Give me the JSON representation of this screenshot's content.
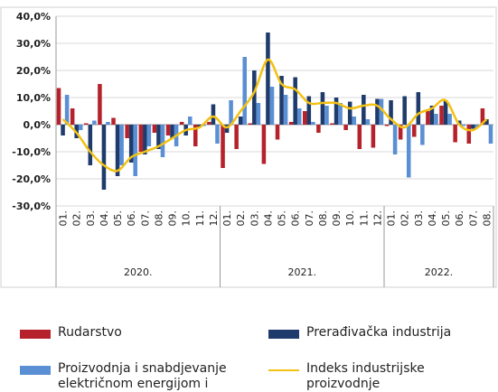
{
  "chart_data": {
    "type": "bar-line",
    "categories": [
      "01.",
      "02.",
      "03.",
      "04.",
      "05.",
      "06.",
      "07.",
      "08.",
      "09.",
      "10.",
      "11.",
      "12.",
      "01.",
      "02.",
      "03.",
      "04.",
      "05.",
      "06.",
      "07.",
      "08.",
      "09.",
      "10.",
      "11.",
      "12.",
      "01.",
      "02.",
      "03.",
      "04.",
      "05.",
      "06.",
      "07.",
      "08."
    ],
    "year_groups": [
      "2020.",
      "2021.",
      "2022."
    ],
    "ylim": [
      -30,
      40
    ],
    "yticks": [
      {
        "value": -30,
        "label": "-30,0%"
      },
      {
        "value": -20,
        "label": "-20,0%"
      },
      {
        "value": -10,
        "label": "-10,0%"
      },
      {
        "value": 0,
        "label": "0,0%"
      },
      {
        "value": 10,
        "label": "10,0%"
      },
      {
        "value": 20,
        "label": "20,0%"
      },
      {
        "value": 30,
        "label": "30,0%"
      },
      {
        "value": 40,
        "label": "40,0%"
      }
    ],
    "grid": true,
    "series": [
      {
        "name": "Rudarstvo",
        "kind": "bar",
        "color": "#b5222b",
        "values": [
          13.5,
          6,
          0.5,
          15,
          2.5,
          -5,
          -10,
          -3,
          -4,
          1,
          -8,
          1,
          -16,
          -9,
          0.5,
          -14.5,
          -5.5,
          1,
          5,
          -3,
          0.5,
          -2,
          -9,
          -8.5,
          -0.5,
          -5.5,
          -4.5,
          5,
          7,
          -6.5,
          -7,
          6
        ]
      },
      {
        "name": "Prerađivačka industrija",
        "kind": "bar",
        "color": "#1f3b6b",
        "values": [
          -4,
          -5,
          -15,
          -24,
          -19,
          -14,
          -11,
          -9,
          -5,
          -4,
          -1,
          7.5,
          -3,
          3,
          20,
          34,
          18,
          17.5,
          10.5,
          12,
          10,
          8.5,
          11,
          9.5,
          9,
          10.5,
          12,
          7,
          9,
          1.5,
          -1.5,
          2
        ]
      },
      {
        "name": "Proizvodnja i snabdjevanje električnom energijom i plinom",
        "kind": "bar",
        "color": "#5b8fd4",
        "values": [
          11,
          -2,
          1.5,
          1,
          -15,
          -19,
          -8,
          -12,
          -8,
          3,
          -0.5,
          -7,
          9,
          25,
          8,
          14,
          11,
          6,
          1,
          7,
          8,
          3,
          2,
          9.5,
          -11,
          -19.5,
          -7.5,
          4,
          4,
          -0.5,
          -1,
          -7
        ]
      },
      {
        "name": "Indeks industrijske proizvodnje",
        "kind": "line",
        "color": "#f2c112",
        "values": [
          2,
          -3,
          -10,
          -15,
          -17,
          -12,
          -10,
          -8,
          -5,
          -2,
          -1,
          3,
          -1,
          5,
          12,
          24,
          15,
          13,
          8,
          8,
          8,
          6,
          7,
          7,
          2,
          -1,
          4,
          6,
          9,
          0,
          -2,
          2
        ]
      }
    ]
  }
}
